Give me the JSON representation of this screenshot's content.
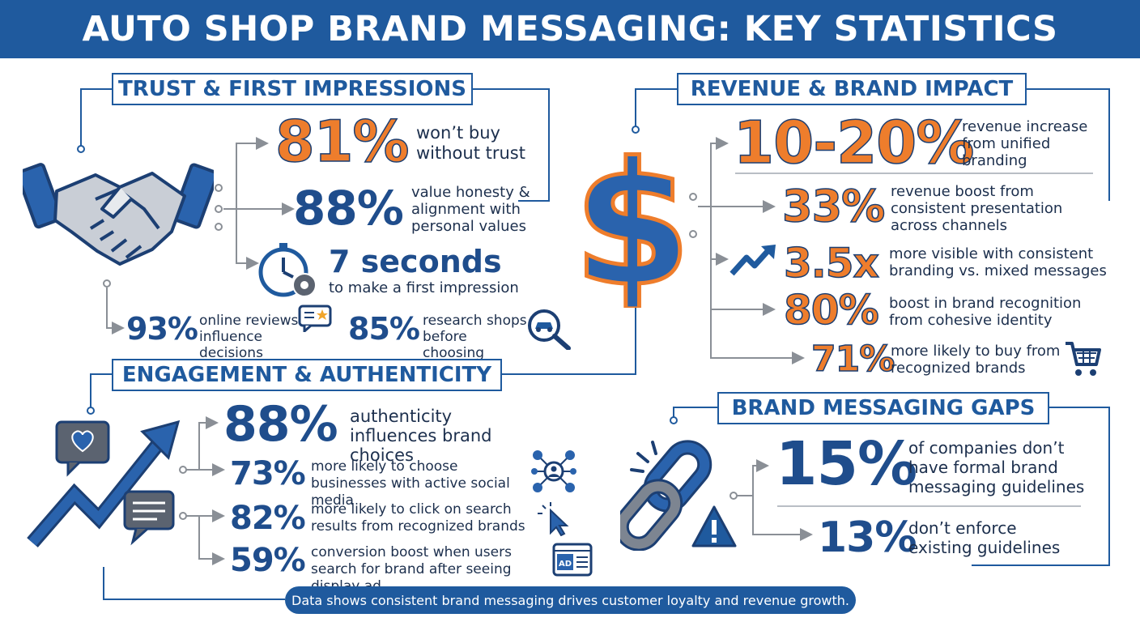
{
  "title": "AUTO SHOP BRAND MESSAGING: KEY STATISTICS",
  "colors": {
    "primary_blue": "#1f5a9e",
    "accent_orange": "#ee7d2c",
    "navy": "#1c3f73"
  },
  "trust": {
    "title": "TRUST & FIRST IMPRESSIONS",
    "stats": [
      {
        "value": "81%",
        "label": "won’t buy without trust",
        "icon": "handshake-icon"
      },
      {
        "value": "88%",
        "label": "value honesty & alignment with personal values"
      },
      {
        "value": "7 seconds",
        "label": "to make a first impression",
        "icon": "stopwatch-gear-icon"
      },
      {
        "value": "93%",
        "label": "online reviews influence decisions",
        "icon": "review-star-icon"
      },
      {
        "value": "85%",
        "label": "research shops before choosing",
        "icon": "car-search-icon"
      }
    ]
  },
  "revenue": {
    "title": "REVENUE & BRAND IMPACT",
    "stats": [
      {
        "value": "10-20%",
        "label": "revenue increase from unified branding",
        "icon": "dollar-sign-icon"
      },
      {
        "value": "33%",
        "label": "revenue boost from consistent presentation across channels"
      },
      {
        "value": "3.5x",
        "label": "more visible with consistent branding vs. mixed messages",
        "icon": "trend-up-icon"
      },
      {
        "value": "80%",
        "label": "boost in brand recognition from cohesive identity"
      },
      {
        "value": "71%",
        "label": "more likely to buy from recognized brands",
        "icon": "shopping-cart-icon"
      }
    ]
  },
  "engagement": {
    "title": "ENGAGEMENT & AUTHENTICITY",
    "stats": [
      {
        "value": "88%",
        "label": "authenticity influences brand choices",
        "icon": "growth-arrow-chat-icon"
      },
      {
        "value": "73%",
        "label": "more likely to choose businesses with active social media",
        "icon": "social-network-icon"
      },
      {
        "value": "82%",
        "label": "more likely to click on search results from recognized brands",
        "icon": "cursor-click-icon"
      },
      {
        "value": "59%",
        "label": "conversion boost when users search for brand after seeing display ad",
        "icon": "display-ad-icon"
      }
    ]
  },
  "gaps": {
    "title": "BRAND MESSAGING GAPS",
    "stats": [
      {
        "value": "15%",
        "label": "of companies don’t have formal brand messaging guidelines",
        "icon": "broken-chain-icon"
      },
      {
        "value": "13%",
        "label": "don’t enforce existing guidelines",
        "icon": "warning-icon"
      }
    ]
  },
  "footer": "Data shows consistent brand messaging drives customer loyalty and revenue growth."
}
